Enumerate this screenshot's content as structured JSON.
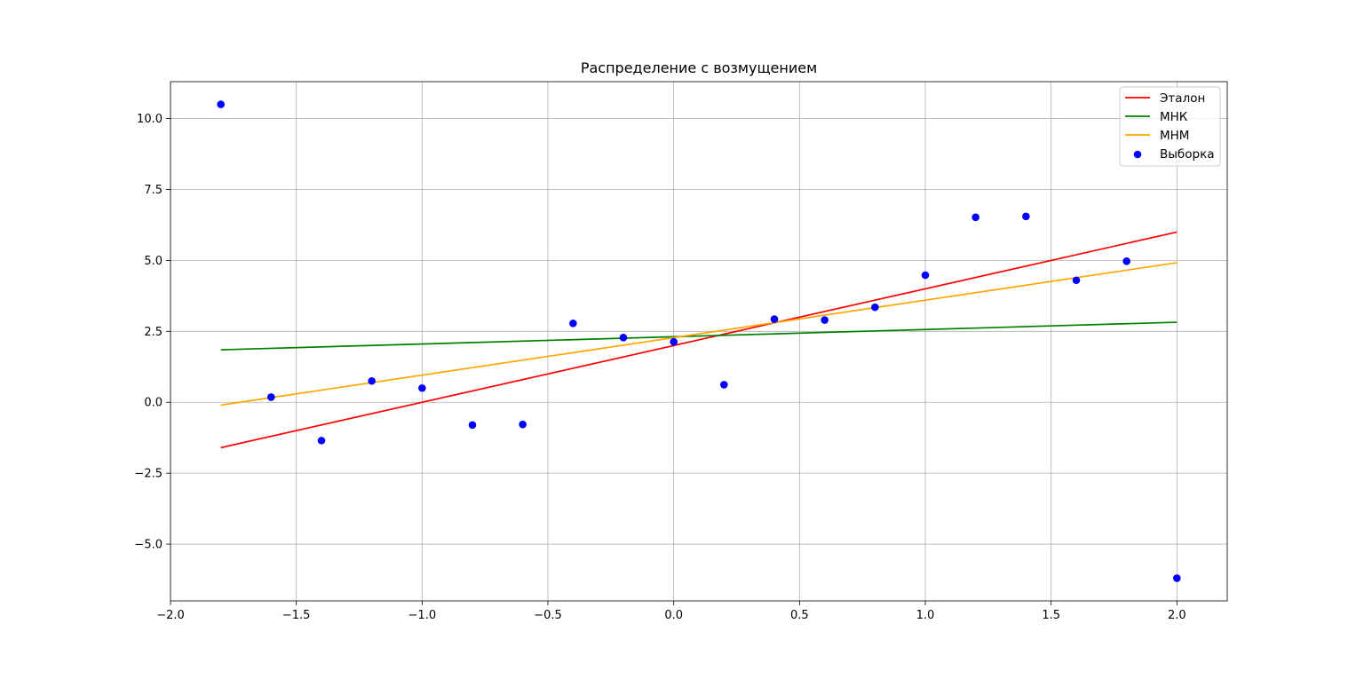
{
  "chart_data": {
    "type": "line",
    "title": "Распределение с возмущением",
    "xlabel": "",
    "ylabel": "",
    "xlim": [
      -2.0,
      2.2
    ],
    "ylim": [
      -7.0,
      11.3
    ],
    "grid": true,
    "legend_position": "top-right",
    "x_ticks": [
      -2.0,
      -1.5,
      -1.0,
      -0.5,
      0.0,
      0.5,
      1.0,
      1.5,
      2.0
    ],
    "x_tick_labels": [
      "−2.0",
      "−1.5",
      "−1.0",
      "−0.5",
      "0.0",
      "0.5",
      "1.0",
      "1.5",
      "2.0"
    ],
    "y_ticks": [
      -5.0,
      -2.5,
      0.0,
      2.5,
      5.0,
      7.5,
      10.0
    ],
    "y_tick_labels": [
      "−5.0",
      "−2.5",
      "0.0",
      "2.5",
      "5.0",
      "7.5",
      "10.0"
    ],
    "series": [
      {
        "name": "Эталон",
        "kind": "line",
        "color": "#ff0000",
        "x": [
          -1.8,
          2.0
        ],
        "y": [
          -1.6,
          6.0
        ]
      },
      {
        "name": "МНК",
        "kind": "line",
        "color": "#008000",
        "x": [
          -1.8,
          2.0
        ],
        "y": [
          1.85,
          2.82
        ]
      },
      {
        "name": "МНМ",
        "kind": "line",
        "color": "#ffa500",
        "x": [
          -1.8,
          2.0
        ],
        "y": [
          -0.1,
          4.92
        ]
      },
      {
        "name": "Выборка",
        "kind": "scatter",
        "color": "#0000ff",
        "x": [
          -1.8,
          -1.6,
          -1.4,
          -1.2,
          -1.0,
          -0.8,
          -0.6,
          -0.4,
          -0.2,
          0.0,
          0.2,
          0.4,
          0.6,
          0.8,
          1.0,
          1.2,
          1.4,
          1.6,
          1.8,
          2.0
        ],
        "y": [
          10.5,
          0.18,
          -1.35,
          0.75,
          0.5,
          -0.8,
          -0.78,
          2.78,
          2.28,
          2.13,
          0.62,
          2.93,
          2.9,
          3.35,
          4.48,
          6.52,
          6.55,
          4.3,
          4.97,
          -6.2
        ]
      }
    ]
  }
}
